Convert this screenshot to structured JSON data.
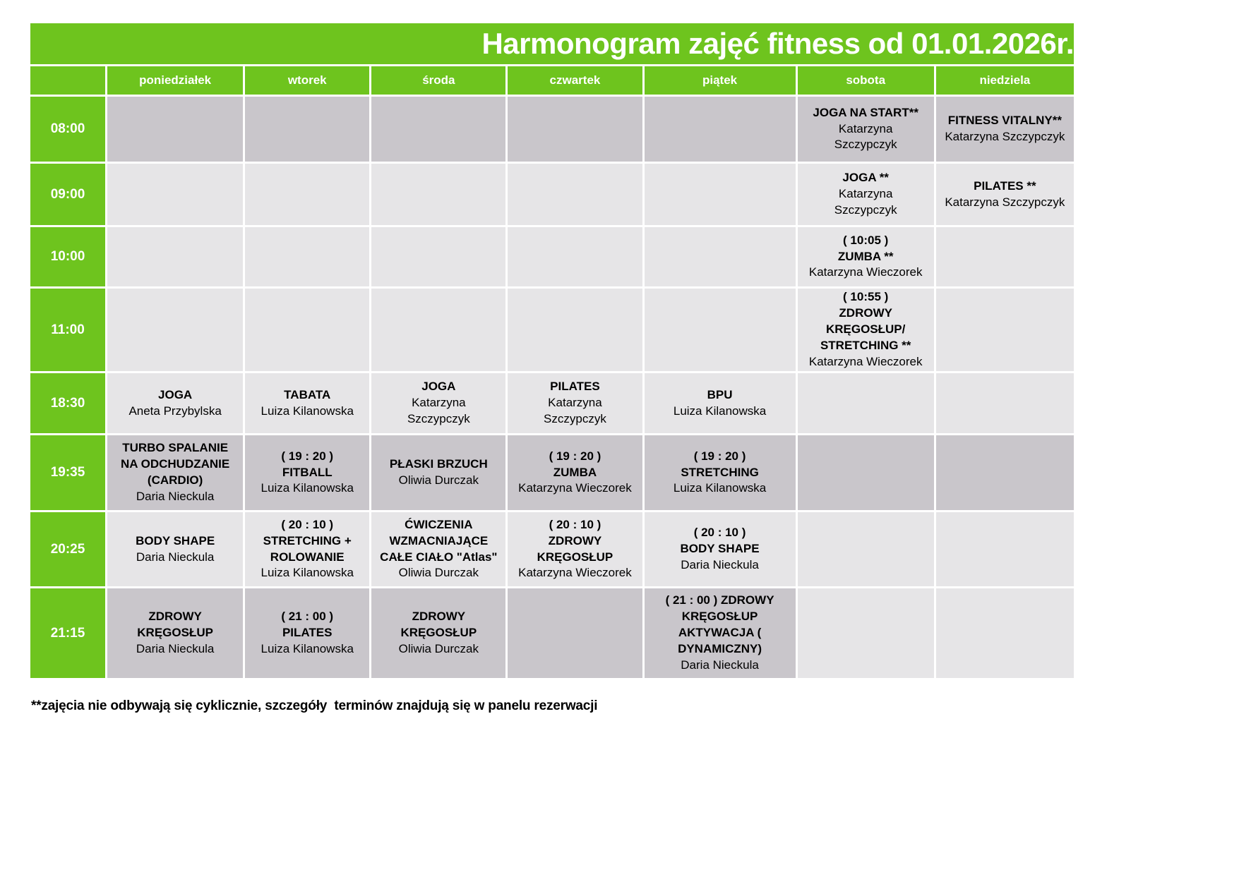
{
  "title": "Harmonogram zajęć fitness od 01.01.2026r.",
  "days": [
    "poniedziałek",
    "wtorek",
    "środa",
    "czwartek",
    "piątek",
    "sobota",
    "niedziela"
  ],
  "colors": {
    "green": "#6ec41e",
    "dark_cell": "#c9c6cb",
    "light_cell": "#e6e5e7",
    "header_text": "#ffffff",
    "body_text": "#000000"
  },
  "schedule": [
    {
      "time": "08:00",
      "shade": "dark",
      "cells": [
        null,
        null,
        null,
        null,
        null,
        {
          "class": "JOGA NA START**",
          "instructor": "Katarzyna\nSzczypczyk"
        },
        {
          "class": "FITNESS VITALNY**",
          "instructor": "Katarzyna Szczypczyk"
        }
      ]
    },
    {
      "time": "09:00",
      "shade": "light",
      "cells": [
        null,
        null,
        null,
        null,
        null,
        {
          "class": "JOGA **",
          "instructor": "Katarzyna\nSzczypczyk"
        },
        {
          "class": "PILATES **",
          "instructor": "Katarzyna Szczypczyk"
        }
      ]
    },
    {
      "time": "10:00",
      "shade": "light",
      "cells": [
        null,
        null,
        null,
        null,
        null,
        {
          "class": "( 10:05 )\nZUMBA **",
          "instructor": "Katarzyna Wieczorek"
        },
        null
      ]
    },
    {
      "time": "11:00",
      "shade": "light",
      "cells": [
        null,
        null,
        null,
        null,
        null,
        {
          "class": "( 10:55 )\nZDROWY\nKRĘGOSŁUP/\nSTRETCHING **",
          "instructor": "Katarzyna Wieczorek"
        },
        null
      ]
    },
    {
      "time": "18:30",
      "shade": "light",
      "cells": [
        {
          "class": "JOGA",
          "instructor": "Aneta Przybylska"
        },
        {
          "class": "TABATA",
          "instructor": "Luiza Kilanowska"
        },
        {
          "class": "JOGA",
          "instructor": "Katarzyna\nSzczypczyk"
        },
        {
          "class": "PILATES",
          "instructor": "Katarzyna\nSzczypczyk"
        },
        {
          "class": "BPU",
          "instructor": "Luiza Kilanowska"
        },
        null,
        null
      ]
    },
    {
      "time": "19:35",
      "shade": "dark",
      "cells": [
        {
          "class": "TURBO SPALANIE\nNA ODCHUDZANIE\n(CARDIO)",
          "instructor": "Daria Nieckula"
        },
        {
          "class": "( 19 : 20 )\nFITBALL",
          "instructor": "Luiza Kilanowska"
        },
        {
          "class": "PŁASKI BRZUCH",
          "instructor": "Oliwia Durczak"
        },
        {
          "class": "( 19 : 20 )\nZUMBA",
          "instructor": "Katarzyna Wieczorek"
        },
        {
          "class": "( 19 : 20 )\nSTRETCHING",
          "instructor": "Luiza Kilanowska"
        },
        null,
        null
      ]
    },
    {
      "time": "20:25",
      "shade": "light",
      "cells": [
        {
          "class": "BODY SHAPE",
          "instructor": "Daria Nieckula"
        },
        {
          "class": "( 20 : 10 )\nSTRETCHING +\nROLOWANIE",
          "instructor": "Luiza Kilanowska"
        },
        {
          "class": "ĆWICZENIA\nWZMACNIAJĄCE\nCAŁE CIAŁO \"Atlas\"",
          "instructor": "Oliwia Durczak"
        },
        {
          "class": "( 20 : 10 )\nZDROWY\nKRĘGOSŁUP",
          "instructor": "Katarzyna Wieczorek"
        },
        {
          "class": "( 20 : 10 )\nBODY SHAPE",
          "instructor": "Daria Nieckula"
        },
        null,
        null
      ]
    },
    {
      "time": "21:15",
      "shade": "dark",
      "cells": [
        {
          "class": "ZDROWY\nKRĘGOSŁUP",
          "instructor": "Daria Nieckula"
        },
        {
          "class": "( 21 : 00 )\nPILATES",
          "instructor": "Luiza Kilanowska"
        },
        {
          "class": "ZDROWY\nKRĘGOSŁUP",
          "instructor": "Oliwia Durczak"
        },
        null,
        {
          "class": "( 21 : 00 ) ZDROWY\nKRĘGOSŁUP\nAKTYWACJA (\nDYNAMICZNY)",
          "instructor": "Daria Nieckula"
        },
        {
          "shade": "light"
        },
        {
          "shade": "light"
        }
      ]
    }
  ],
  "footnote": "**zajęcia nie odbywają się cyklicznie, szczegóły  terminów znajdują się w panelu rezerwacji"
}
